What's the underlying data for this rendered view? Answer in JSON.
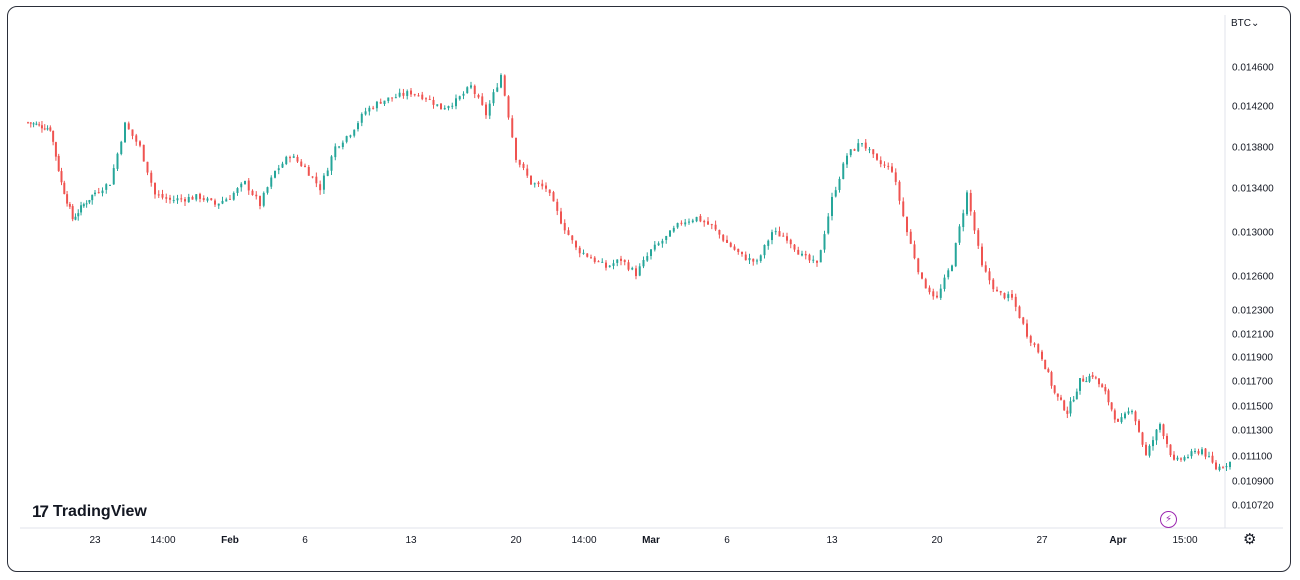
{
  "symbol": {
    "label": "BTC",
    "caret": "⌄"
  },
  "logo": {
    "text": "TradingView",
    "mark": "17"
  },
  "colors": {
    "up": "#26a69a",
    "down": "#ef5350",
    "frame": "#2a2e39",
    "text": "#131722",
    "accent": "#9c27b0",
    "grid": "#e0e3eb"
  },
  "icons": {
    "settings": "gear-icon",
    "replay": "lightning-icon"
  },
  "chart_data": {
    "type": "candlestick",
    "y_ticks": [
      "0.014600",
      "0.014200",
      "0.013800",
      "0.013400",
      "0.013000",
      "0.012600",
      "0.012300",
      "0.012100",
      "0.011900",
      "0.011700",
      "0.011500",
      "0.011300",
      "0.011100",
      "0.010900",
      "0.010720"
    ],
    "x_ticks": [
      {
        "label": "23",
        "bold": false
      },
      {
        "label": "14:00",
        "bold": false
      },
      {
        "label": "Feb",
        "bold": true
      },
      {
        "label": "6",
        "bold": false
      },
      {
        "label": "13",
        "bold": false
      },
      {
        "label": "20",
        "bold": false
      },
      {
        "label": "14:00",
        "bold": false
      },
      {
        "label": "Mar",
        "bold": true
      },
      {
        "label": "6",
        "bold": false
      },
      {
        "label": "13",
        "bold": false
      },
      {
        "label": "20",
        "bold": false
      },
      {
        "label": "27",
        "bold": false
      },
      {
        "label": "Apr",
        "bold": true
      },
      {
        "label": "15:00",
        "bold": false
      }
    ],
    "close_path": [
      [
        "2023-01-17",
        0.01404
      ],
      [
        "2023-01-19",
        0.01398
      ],
      [
        "2023-01-20",
        0.01345
      ],
      [
        "2023-01-21",
        0.01312
      ],
      [
        "2023-01-22",
        0.01325
      ],
      [
        "2023-01-23",
        0.01336
      ],
      [
        "2023-01-24",
        0.01345
      ],
      [
        "2023-01-25",
        0.01402
      ],
      [
        "2023-01-26",
        0.0138
      ],
      [
        "2023-01-27",
        0.01334
      ],
      [
        "2023-01-28",
        0.01329
      ],
      [
        "2023-01-30",
        0.01332
      ],
      [
        "2023-01-31",
        0.01325
      ],
      [
        "2023-02-01",
        0.01332
      ],
      [
        "2023-02-02",
        0.01345
      ],
      [
        "2023-02-03",
        0.01325
      ],
      [
        "2023-02-04",
        0.01356
      ],
      [
        "2023-02-05",
        0.01372
      ],
      [
        "2023-02-06",
        0.0136
      ],
      [
        "2023-02-07",
        0.0134
      ],
      [
        "2023-02-08",
        0.0138
      ],
      [
        "2023-02-09",
        0.01394
      ],
      [
        "2023-02-10",
        0.01415
      ],
      [
        "2023-02-11",
        0.01425
      ],
      [
        "2023-02-13",
        0.01434
      ],
      [
        "2023-02-14",
        0.01429
      ],
      [
        "2023-02-15",
        0.01418
      ],
      [
        "2023-02-16",
        0.01425
      ],
      [
        "2023-02-17",
        0.0144
      ],
      [
        "2023-02-18",
        0.01412
      ],
      [
        "2023-02-19",
        0.01452
      ],
      [
        "2023-02-20",
        0.0137
      ],
      [
        "2023-02-21",
        0.01345
      ],
      [
        "2023-02-22",
        0.0134
      ],
      [
        "2023-02-23",
        0.0131
      ],
      [
        "2023-02-24",
        0.01285
      ],
      [
        "2023-02-26",
        0.01268
      ],
      [
        "2023-02-27",
        0.01275
      ],
      [
        "2023-02-28",
        0.01262
      ],
      [
        "2023-03-01",
        0.01283
      ],
      [
        "2023-03-02",
        0.01295
      ],
      [
        "2023-03-03",
        0.01309
      ],
      [
        "2023-03-04",
        0.01313
      ],
      [
        "2023-03-05",
        0.01305
      ],
      [
        "2023-03-06",
        0.0129
      ],
      [
        "2023-03-07",
        0.01278
      ],
      [
        "2023-03-08",
        0.01272
      ],
      [
        "2023-03-09",
        0.013
      ],
      [
        "2023-03-10",
        0.01295
      ],
      [
        "2023-03-11",
        0.01278
      ],
      [
        "2023-03-12",
        0.0127
      ],
      [
        "2023-03-13",
        0.0133
      ],
      [
        "2023-03-14",
        0.01372
      ],
      [
        "2023-03-15",
        0.01385
      ],
      [
        "2023-03-16",
        0.01365
      ],
      [
        "2023-03-17",
        0.01358
      ],
      [
        "2023-03-18",
        0.013
      ],
      [
        "2023-03-19",
        0.01255
      ],
      [
        "2023-03-20",
        0.0124
      ],
      [
        "2023-03-21",
        0.01272
      ],
      [
        "2023-03-22",
        0.01335
      ],
      [
        "2023-03-23",
        0.01268
      ],
      [
        "2023-03-24",
        0.01245
      ],
      [
        "2023-03-25",
        0.0124
      ],
      [
        "2023-03-26",
        0.0121
      ],
      [
        "2023-03-27",
        0.0119
      ],
      [
        "2023-03-28",
        0.0116
      ],
      [
        "2023-03-29",
        0.01145
      ],
      [
        "2023-03-30",
        0.0117
      ],
      [
        "2023-03-31",
        0.01175
      ],
      [
        "2023-04-01",
        0.0116
      ],
      [
        "2023-04-02",
        0.01135
      ],
      [
        "2023-04-03",
        0.01148
      ],
      [
        "2023-04-04",
        0.0111
      ],
      [
        "2023-04-05",
        0.01135
      ],
      [
        "2023-04-06",
        0.01105
      ],
      [
        "2023-04-07",
        0.0111
      ],
      [
        "2023-04-08",
        0.01115
      ],
      [
        "2023-04-09",
        0.011
      ],
      [
        "2023-04-10",
        0.01105
      ]
    ],
    "grid": false,
    "legend": "none"
  }
}
